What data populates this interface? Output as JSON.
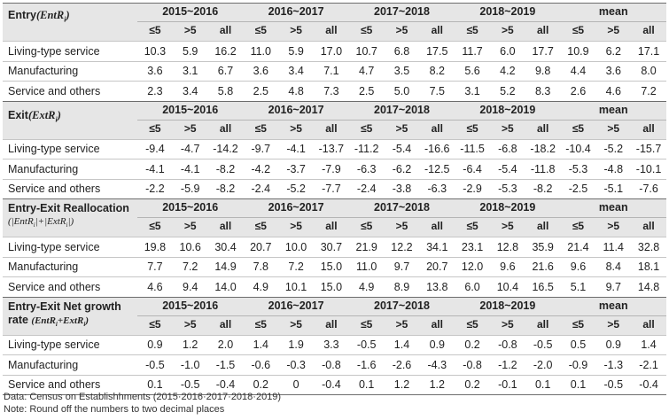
{
  "periods": [
    "2015~2016",
    "2016~2017",
    "2017~2018",
    "2018~2019",
    "mean"
  ],
  "subheaders": [
    "≤5",
    ">5",
    "all"
  ],
  "sections": [
    {
      "title": "Entry",
      "formula": "(EntR",
      "formula_sub": "i",
      "formula_end": ")",
      "rows": [
        {
          "label": "Living-type service",
          "values": [
            "10.3",
            "5.9",
            "16.2",
            "11.0",
            "5.9",
            "17.0",
            "10.7",
            "6.8",
            "17.5",
            "11.7",
            "6.0",
            "17.7",
            "10.9",
            "6.2",
            "17.1"
          ]
        },
        {
          "label": "Manufacturing",
          "values": [
            "3.6",
            "3.1",
            "6.7",
            "3.6",
            "3.4",
            "7.1",
            "4.7",
            "3.5",
            "8.2",
            "5.6",
            "4.2",
            "9.8",
            "4.4",
            "3.6",
            "8.0"
          ]
        },
        {
          "label": "Service and others",
          "values": [
            "2.3",
            "3.4",
            "5.8",
            "2.5",
            "4.8",
            "7.3",
            "2.5",
            "5.0",
            "7.5",
            "3.1",
            "5.2",
            "8.3",
            "2.6",
            "4.6",
            "7.2"
          ]
        }
      ]
    },
    {
      "title": "Exit",
      "formula": "(ExtR",
      "formula_sub": "i",
      "formula_end": ")",
      "rows": [
        {
          "label": "Living-type service",
          "values": [
            "-9.4",
            "-4.7",
            "-14.2",
            "-9.7",
            "-4.1",
            "-13.7",
            "-11.2",
            "-5.4",
            "-16.6",
            "-11.5",
            "-6.8",
            "-18.2",
            "-10.4",
            "-5.2",
            "-15.7"
          ]
        },
        {
          "label": "Manufacturing",
          "values": [
            "-4.1",
            "-4.1",
            "-8.2",
            "-4.2",
            "-3.7",
            "-7.9",
            "-6.3",
            "-6.2",
            "-12.5",
            "-6.4",
            "-5.4",
            "-11.8",
            "-5.3",
            "-4.8",
            "-10.1"
          ]
        },
        {
          "label": "Service and others",
          "values": [
            "-2.2",
            "-5.9",
            "-8.2",
            "-2.4",
            "-5.2",
            "-7.7",
            "-2.4",
            "-3.8",
            "-6.3",
            "-2.9",
            "-5.3",
            "-8.2",
            "-2.5",
            "-5.1",
            "-7.6"
          ]
        }
      ]
    },
    {
      "title": "Entry-Exit Reallocation",
      "formula": "(|EntR",
      "formula_sub": "i",
      "formula_mid": "|+|ExtR",
      "formula_sub2": "i",
      "formula_end": "|)",
      "rows": [
        {
          "label": "Living-type service",
          "values": [
            "19.8",
            "10.6",
            "30.4",
            "20.7",
            "10.0",
            "30.7",
            "21.9",
            "12.2",
            "34.1",
            "23.1",
            "12.8",
            "35.9",
            "21.4",
            "11.4",
            "32.8"
          ]
        },
        {
          "label": "Manufacturing",
          "values": [
            "7.7",
            "7.2",
            "14.9",
            "7.8",
            "7.2",
            "15.0",
            "11.0",
            "9.7",
            "20.7",
            "12.0",
            "9.6",
            "21.6",
            "9.6",
            "8.4",
            "18.1"
          ]
        },
        {
          "label": "Service and others",
          "values": [
            "4.6",
            "9.4",
            "14.0",
            "4.9",
            "10.1",
            "15.0",
            "4.9",
            "8.9",
            "13.8",
            "6.0",
            "10.4",
            "16.5",
            "5.1",
            "9.7",
            "14.8"
          ]
        }
      ]
    },
    {
      "title": "Entry-Exit Net growth",
      "title2": "rate ",
      "formula": "(EntR",
      "formula_sub": "i",
      "formula_mid": "+ExtR",
      "formula_sub2": "i",
      "formula_end": ")",
      "rows": [
        {
          "label": "Living-type service",
          "values": [
            "0.9",
            "1.2",
            "2.0",
            "1.4",
            "1.9",
            "3.3",
            "-0.5",
            "1.4",
            "0.9",
            "0.2",
            "-0.8",
            "-0.5",
            "0.5",
            "0.9",
            "1.4"
          ]
        },
        {
          "label": "Manufacturing",
          "values": [
            "-0.5",
            "-1.0",
            "-1.5",
            "-0.6",
            "-0.3",
            "-0.8",
            "-1.6",
            "-2.6",
            "-4.3",
            "-0.8",
            "-1.2",
            "-2.0",
            "-0.9",
            "-1.3",
            "-2.1"
          ]
        },
        {
          "label": "Service and others",
          "values": [
            "0.1",
            "-0.5",
            "-0.4",
            "0.2",
            "0",
            "-0.4",
            "0.1",
            "1.2",
            "1.2",
            "0.2",
            "-0.1",
            "0.1",
            "0.1",
            "-0.5",
            "-0.4"
          ]
        }
      ]
    }
  ],
  "notes": {
    "source": "Data: Census on Establishhments (2015·2016·2017·2018·2019)",
    "note": "Note: Round off the numbers to two decimal places"
  }
}
